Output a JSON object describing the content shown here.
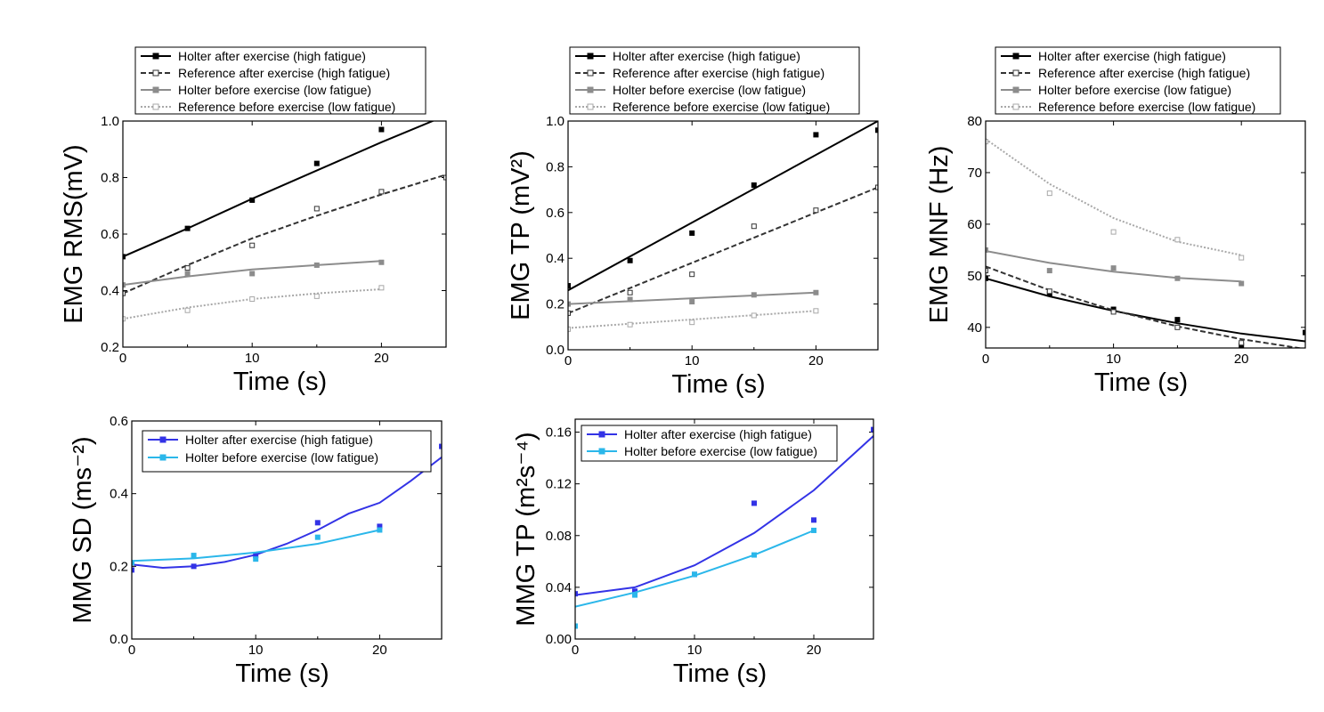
{
  "colors": {
    "black": "#000000",
    "gray_dark": "#333333",
    "gray": "#8c8c8c",
    "gray_light": "#a8a8a8",
    "blue": "#3333e6",
    "cyan": "#2bb7ea"
  },
  "chart_data": [
    {
      "type": "scatter",
      "xlabel": "Time (s)",
      "ylabel": "EMG RMS(mV)",
      "xlim": [
        0,
        25
      ],
      "ylim": [
        0.2,
        1.0
      ],
      "xticks": [
        "0",
        "10",
        "20"
      ],
      "yticks": [
        "0.2",
        "0.4",
        "0.6",
        "0.8",
        "1.0"
      ],
      "legend_position": "top",
      "series": [
        {
          "name": "Holter after exercise (high fatigue)",
          "color": "black",
          "dash": "solid",
          "marker": "filled-square",
          "points": [
            [
              0,
              0.52
            ],
            [
              5,
              0.62
            ],
            [
              10,
              0.72
            ],
            [
              15,
              0.85
            ],
            [
              20,
              0.97
            ]
          ],
          "fit": [
            [
              0,
              0.52
            ],
            [
              5,
              0.62
            ],
            [
              10,
              0.725
            ],
            [
              15,
              0.825
            ],
            [
              20,
              0.925
            ],
            [
              25,
              1.02
            ]
          ]
        },
        {
          "name": "Reference after exercise (high fatigue)",
          "color": "gray_dark",
          "dash": "dashed",
          "marker": "open-square",
          "points": [
            [
              0,
              0.39
            ],
            [
              5,
              0.48
            ],
            [
              10,
              0.56
            ],
            [
              15,
              0.69
            ],
            [
              20,
              0.75
            ],
            [
              25,
              0.8
            ]
          ],
          "fit": [
            [
              0,
              0.39
            ],
            [
              5,
              0.49
            ],
            [
              10,
              0.585
            ],
            [
              15,
              0.665
            ],
            [
              20,
              0.74
            ],
            [
              25,
              0.81
            ]
          ]
        },
        {
          "name": "Holter before exercise (low fatigue)",
          "color": "gray",
          "dash": "solid",
          "marker": "filled-square",
          "points": [
            [
              0,
              0.42
            ],
            [
              5,
              0.46
            ],
            [
              10,
              0.46
            ],
            [
              15,
              0.49
            ],
            [
              20,
              0.5
            ]
          ],
          "fit": [
            [
              0,
              0.42
            ],
            [
              5,
              0.45
            ],
            [
              10,
              0.475
            ],
            [
              15,
              0.49
            ],
            [
              20,
              0.505
            ]
          ]
        },
        {
          "name": "Reference before exercise (low fatigue)",
          "color": "gray_light",
          "dash": "dotted",
          "marker": "open-square",
          "points": [
            [
              0,
              0.3
            ],
            [
              5,
              0.33
            ],
            [
              10,
              0.37
            ],
            [
              15,
              0.38
            ],
            [
              20,
              0.41
            ]
          ],
          "fit": [
            [
              0,
              0.3
            ],
            [
              5,
              0.34
            ],
            [
              10,
              0.37
            ],
            [
              15,
              0.39
            ],
            [
              20,
              0.405
            ]
          ]
        }
      ]
    },
    {
      "type": "scatter",
      "xlabel": "Time (s)",
      "ylabel": "EMG TP (mV²)",
      "xlim": [
        0,
        25
      ],
      "ylim": [
        0.0,
        1.0
      ],
      "xticks": [
        "0",
        "10",
        "20"
      ],
      "yticks": [
        "0.0",
        "0.2",
        "0.4",
        "0.6",
        "0.8",
        "1.0"
      ],
      "legend_position": "top",
      "series": [
        {
          "name": "Holter after exercise (high fatigue)",
          "color": "black",
          "dash": "solid",
          "marker": "filled-square",
          "points": [
            [
              0,
              0.28
            ],
            [
              5,
              0.39
            ],
            [
              10,
              0.51
            ],
            [
              15,
              0.72
            ],
            [
              20,
              0.94
            ],
            [
              25,
              0.96
            ]
          ],
          "fit": [
            [
              0,
              0.26
            ],
            [
              25,
              1.0
            ]
          ]
        },
        {
          "name": "Reference after exercise (high fatigue)",
          "color": "gray_dark",
          "dash": "dashed",
          "marker": "open-square",
          "points": [
            [
              0,
              0.16
            ],
            [
              5,
              0.25
            ],
            [
              10,
              0.33
            ],
            [
              15,
              0.54
            ],
            [
              20,
              0.61
            ],
            [
              25,
              0.71
            ]
          ],
          "fit": [
            [
              0,
              0.16
            ],
            [
              25,
              0.71
            ]
          ]
        },
        {
          "name": "Holter before exercise (low fatigue)",
          "color": "gray",
          "dash": "solid",
          "marker": "filled-square",
          "points": [
            [
              0,
              0.2
            ],
            [
              5,
              0.22
            ],
            [
              10,
              0.21
            ],
            [
              15,
              0.24
            ],
            [
              20,
              0.25
            ]
          ],
          "fit": [
            [
              0,
              0.2
            ],
            [
              20,
              0.25
            ]
          ]
        },
        {
          "name": "Reference before exercise (low fatigue)",
          "color": "gray_light",
          "dash": "dotted",
          "marker": "open-square",
          "points": [
            [
              0,
              0.09
            ],
            [
              5,
              0.11
            ],
            [
              10,
              0.12
            ],
            [
              15,
              0.15
            ],
            [
              20,
              0.17
            ]
          ],
          "fit": [
            [
              0,
              0.095
            ],
            [
              20,
              0.17
            ]
          ]
        }
      ]
    },
    {
      "type": "scatter",
      "xlabel": "Time (s)",
      "ylabel": "EMG MNF (Hz)",
      "xlim": [
        0,
        25
      ],
      "ylim": [
        36,
        80
      ],
      "xticks": [
        "0",
        "10",
        "20"
      ],
      "yticks": [
        "40",
        "50",
        "60",
        "70",
        "80"
      ],
      "legend_position": "top",
      "series": [
        {
          "name": "Holter after exercise (high fatigue)",
          "color": "black",
          "dash": "solid",
          "marker": "filled-square",
          "points": [
            [
              0,
              49.5
            ],
            [
              5,
              46.5
            ],
            [
              10,
              43.5
            ],
            [
              15,
              41.5
            ],
            [
              20,
              36.5
            ],
            [
              25,
              39
            ]
          ],
          "fit": [
            [
              0,
              49.5
            ],
            [
              5,
              46
            ],
            [
              10,
              43.2
            ],
            [
              15,
              40.8
            ],
            [
              20,
              38.8
            ],
            [
              25,
              37.3
            ]
          ]
        },
        {
          "name": "Reference after exercise (high fatigue)",
          "color": "gray_dark",
          "dash": "dashed",
          "marker": "open-square",
          "points": [
            [
              0,
              51
            ],
            [
              5,
              47
            ],
            [
              10,
              43
            ],
            [
              15,
              40
            ],
            [
              20,
              37
            ]
          ],
          "fit": [
            [
              0,
              51.8
            ],
            [
              5,
              47.2
            ],
            [
              10,
              43.3
            ],
            [
              15,
              40.2
            ],
            [
              20,
              37.7
            ],
            [
              25,
              35.8
            ]
          ]
        },
        {
          "name": "Holter before exercise (low fatigue)",
          "color": "gray",
          "dash": "solid",
          "marker": "filled-square",
          "points": [
            [
              0,
              55
            ],
            [
              5,
              51
            ],
            [
              10,
              51.5
            ],
            [
              15,
              49.5
            ],
            [
              20,
              48.5
            ]
          ],
          "fit": [
            [
              0,
              54.8
            ],
            [
              5,
              52.5
            ],
            [
              10,
              50.8
            ],
            [
              15,
              49.6
            ],
            [
              20,
              48.9
            ]
          ]
        },
        {
          "name": "Reference before exercise (low fatigue)",
          "color": "gray_light",
          "dash": "dotted",
          "marker": "open-square",
          "points": [
            [
              0,
              76
            ],
            [
              5,
              66
            ],
            [
              10,
              58.5
            ],
            [
              15,
              57
            ],
            [
              20,
              53.5
            ]
          ],
          "fit": [
            [
              0,
              76.5
            ],
            [
              5,
              67.8
            ],
            [
              10,
              61.2
            ],
            [
              15,
              56.6
            ],
            [
              20,
              54
            ]
          ]
        }
      ]
    },
    {
      "type": "scatter",
      "xlabel": "Time (s)",
      "ylabel": "MMG SD (ms⁻²)",
      "xlim": [
        0,
        25
      ],
      "ylim": [
        0.0,
        0.6
      ],
      "xticks": [
        "0",
        "10",
        "20"
      ],
      "yticks": [
        "0.0",
        "0.2",
        "0.4",
        "0.6"
      ],
      "legend_position": "top",
      "series": [
        {
          "name": "Holter after exercise (high fatigue)",
          "color": "blue",
          "dash": "solid",
          "marker": "filled-square",
          "points": [
            [
              0,
              0.19
            ],
            [
              5,
              0.2
            ],
            [
              10,
              0.23
            ],
            [
              15,
              0.32
            ],
            [
              20,
              0.31
            ],
            [
              25,
              0.53
            ]
          ],
          "fit": [
            [
              0,
              0.205
            ],
            [
              2.5,
              0.196
            ],
            [
              5,
              0.2
            ],
            [
              7.5,
              0.212
            ],
            [
              10,
              0.232
            ],
            [
              12.5,
              0.262
            ],
            [
              15,
              0.3
            ],
            [
              17.5,
              0.345
            ],
            [
              20,
              0.375
            ],
            [
              22.5,
              0.435
            ],
            [
              25,
              0.5
            ]
          ]
        },
        {
          "name": "Holter before exercise (low fatigue)",
          "color": "cyan",
          "dash": "solid",
          "marker": "filled-square",
          "points": [
            [
              0,
              0.21
            ],
            [
              5,
              0.23
            ],
            [
              10,
              0.22
            ],
            [
              15,
              0.28
            ],
            [
              20,
              0.3
            ]
          ],
          "fit": [
            [
              0,
              0.215
            ],
            [
              5,
              0.222
            ],
            [
              10,
              0.238
            ],
            [
              15,
              0.262
            ],
            [
              20,
              0.3
            ]
          ]
        }
      ]
    },
    {
      "type": "scatter",
      "xlabel": "Time (s)",
      "ylabel": "MMG TP (m²s⁻⁴)",
      "xlim": [
        0,
        25
      ],
      "ylim": [
        0.0,
        0.17
      ],
      "xticks": [
        "0",
        "10",
        "20"
      ],
      "yticks": [
        "0.00",
        "0.04",
        "0.08",
        "0.12",
        "0.16"
      ],
      "legend_position": "top",
      "series": [
        {
          "name": "Holter after exercise (high fatigue)",
          "color": "blue",
          "dash": "solid",
          "marker": "filled-square",
          "points": [
            [
              0,
              0.035
            ],
            [
              5,
              0.037
            ],
            [
              10,
              0.05
            ],
            [
              15,
              0.105
            ],
            [
              20,
              0.092
            ],
            [
              25,
              0.162
            ]
          ],
          "fit": [
            [
              0,
              0.034
            ],
            [
              5,
              0.04
            ],
            [
              10,
              0.057
            ],
            [
              15,
              0.082
            ],
            [
              20,
              0.115
            ],
            [
              25,
              0.157
            ]
          ]
        },
        {
          "name": "Holter before exercise (low fatigue)",
          "color": "cyan",
          "dash": "solid",
          "marker": "filled-square",
          "points": [
            [
              0,
              0.01
            ],
            [
              5,
              0.034
            ],
            [
              10,
              0.05
            ],
            [
              15,
              0.065
            ],
            [
              20,
              0.084
            ]
          ],
          "fit": [
            [
              0,
              0.025
            ],
            [
              5,
              0.036
            ],
            [
              10,
              0.049
            ],
            [
              15,
              0.065
            ],
            [
              20,
              0.084
            ]
          ]
        }
      ]
    }
  ]
}
